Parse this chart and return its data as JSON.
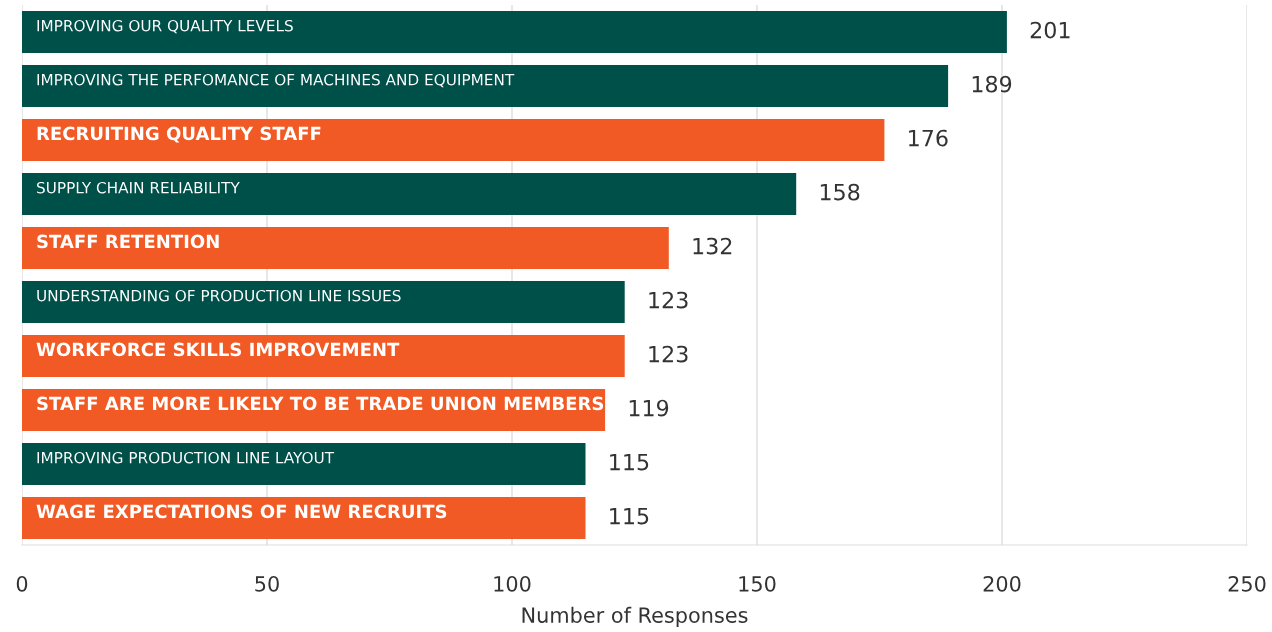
{
  "chart_data": {
    "type": "bar",
    "orientation": "horizontal",
    "xlabel": "Number of Responses",
    "categories": [
      "IMPROVING OUR QUALITY LEVELS",
      "IMPROVING THE PERFOMANCE OF MACHINES AND EQUIPMENT",
      "RECRUITING QUALITY STAFF",
      "SUPPLY CHAIN RELIABILITY",
      "STAFF RETENTION",
      "UNDERSTANDING OF PRODUCTION LINE ISSUES",
      "WORKFORCE SKILLS IMPROVEMENT",
      "STAFF ARE MORE LIKELY TO BE TRADE UNION MEMBERS",
      "IMPROVING PRODUCTION LINE LAYOUT",
      "WAGE EXPECTATIONS OF NEW RECRUITS"
    ],
    "values": [
      201,
      189,
      176,
      158,
      132,
      123,
      123,
      119,
      115,
      115
    ],
    "colors": [
      "#00504a",
      "#00504a",
      "#f15a24",
      "#00504a",
      "#f15a24",
      "#00504a",
      "#f15a24",
      "#f15a24",
      "#00504a",
      "#f15a24"
    ],
    "xlim": [
      0,
      250
    ],
    "xticks": [
      0,
      50,
      100,
      150,
      200,
      250
    ],
    "grid": "x",
    "data_labels": true
  }
}
